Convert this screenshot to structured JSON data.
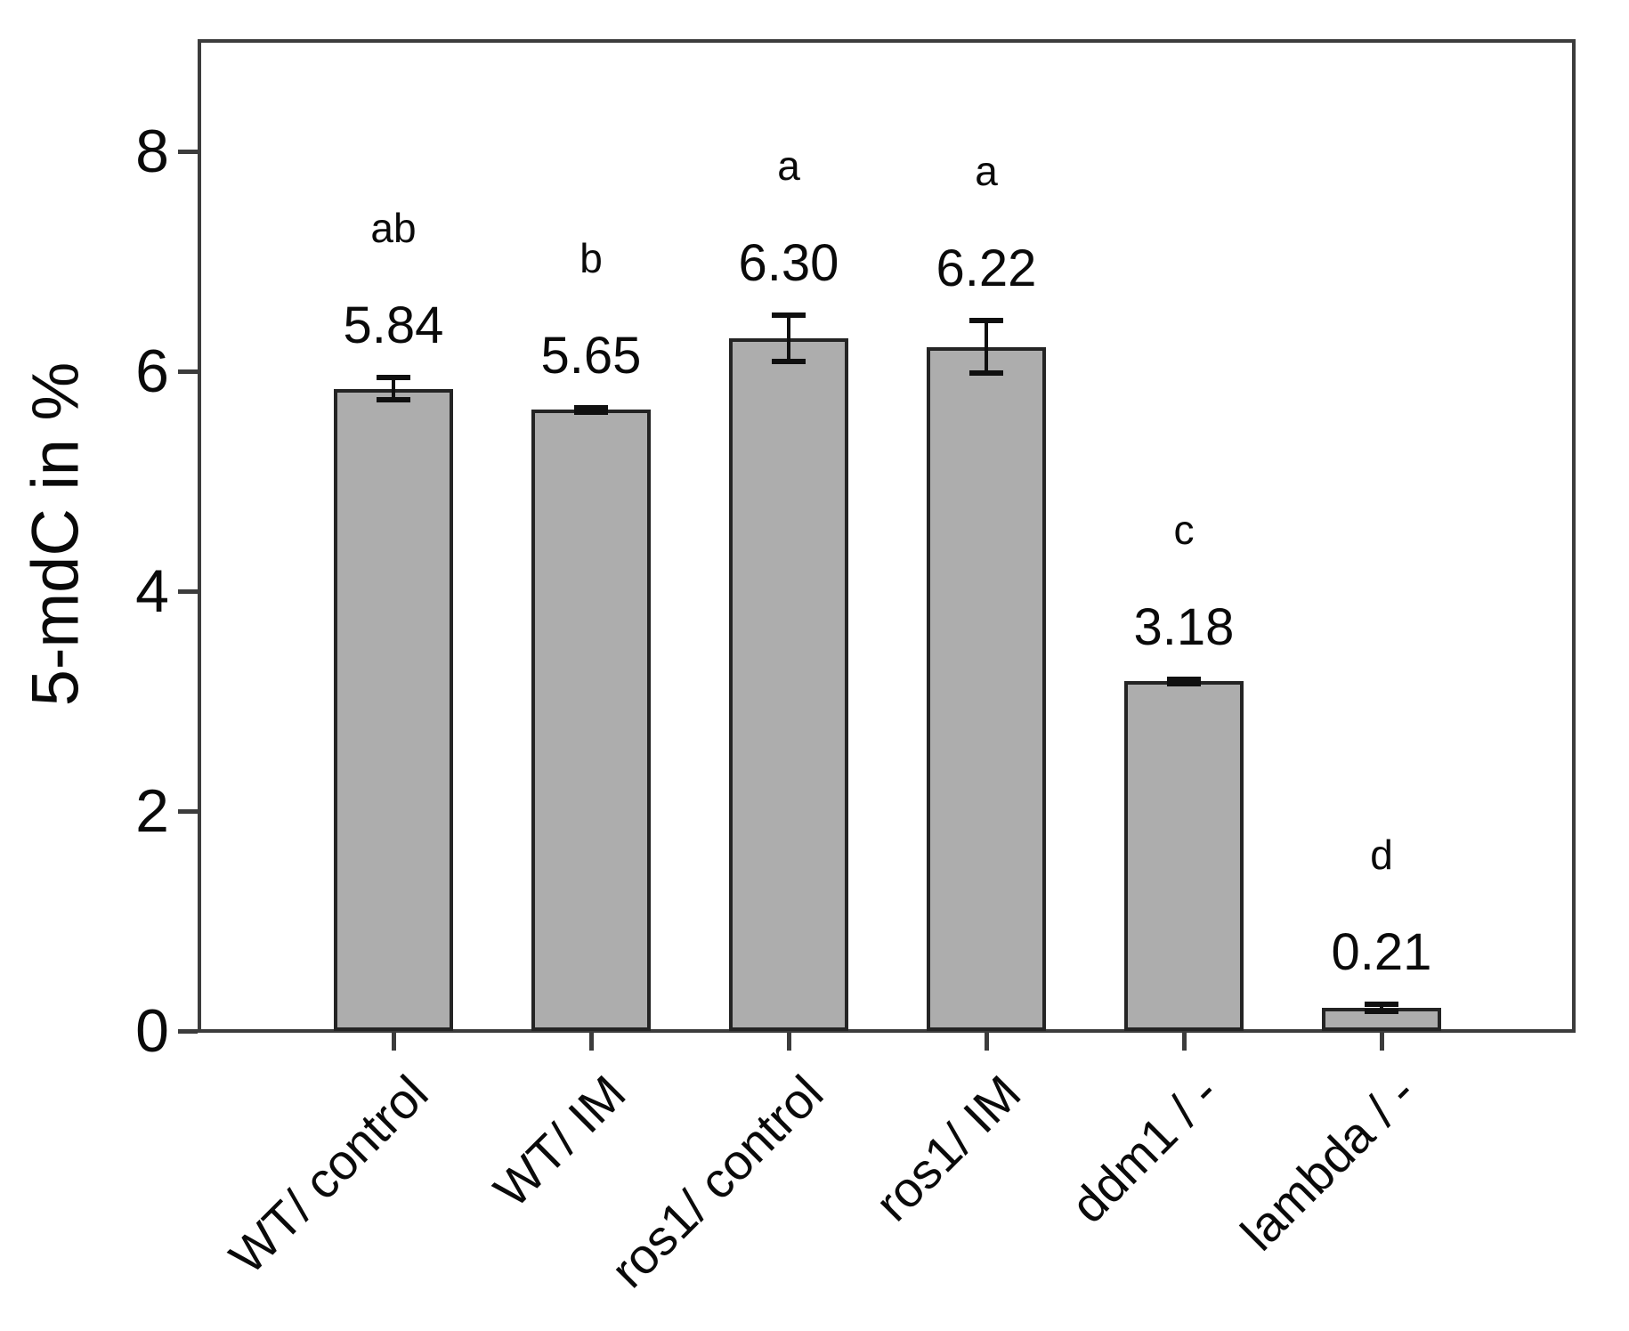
{
  "chart_data": {
    "type": "bar",
    "title": "",
    "xlabel": "",
    "ylabel": "5-mdC in %",
    "ylim": [
      0,
      9.05
    ],
    "yticks": [
      "0",
      "2",
      "4",
      "6",
      "8"
    ],
    "ytick_values": [
      0,
      2,
      4,
      6,
      8
    ],
    "grid": false,
    "legend": null,
    "categories": [
      "WT/ control",
      "WT/ IM",
      "ros1/ control",
      "ros1/ IM",
      "ddm1 / -",
      "lambda / -"
    ],
    "values": [
      5.84,
      5.65,
      6.3,
      6.22,
      3.18,
      0.21
    ],
    "value_labels": [
      "5.84",
      "5.65",
      "6.30",
      "6.22",
      "3.18",
      "0.21"
    ],
    "sig_letters": [
      "ab",
      "b",
      "a",
      "a",
      "c",
      "d"
    ],
    "error_bars": {
      "visible": true,
      "values": [
        0.1,
        0.02,
        0.21,
        0.24,
        0.02,
        0.03
      ]
    },
    "colors": {
      "bar_fill": "#adadad",
      "bar_edge": "#242424",
      "axis": "#3c3c3c",
      "text": "#0a0a0a",
      "error_bar": "#101010",
      "background": "#ffffff"
    }
  }
}
